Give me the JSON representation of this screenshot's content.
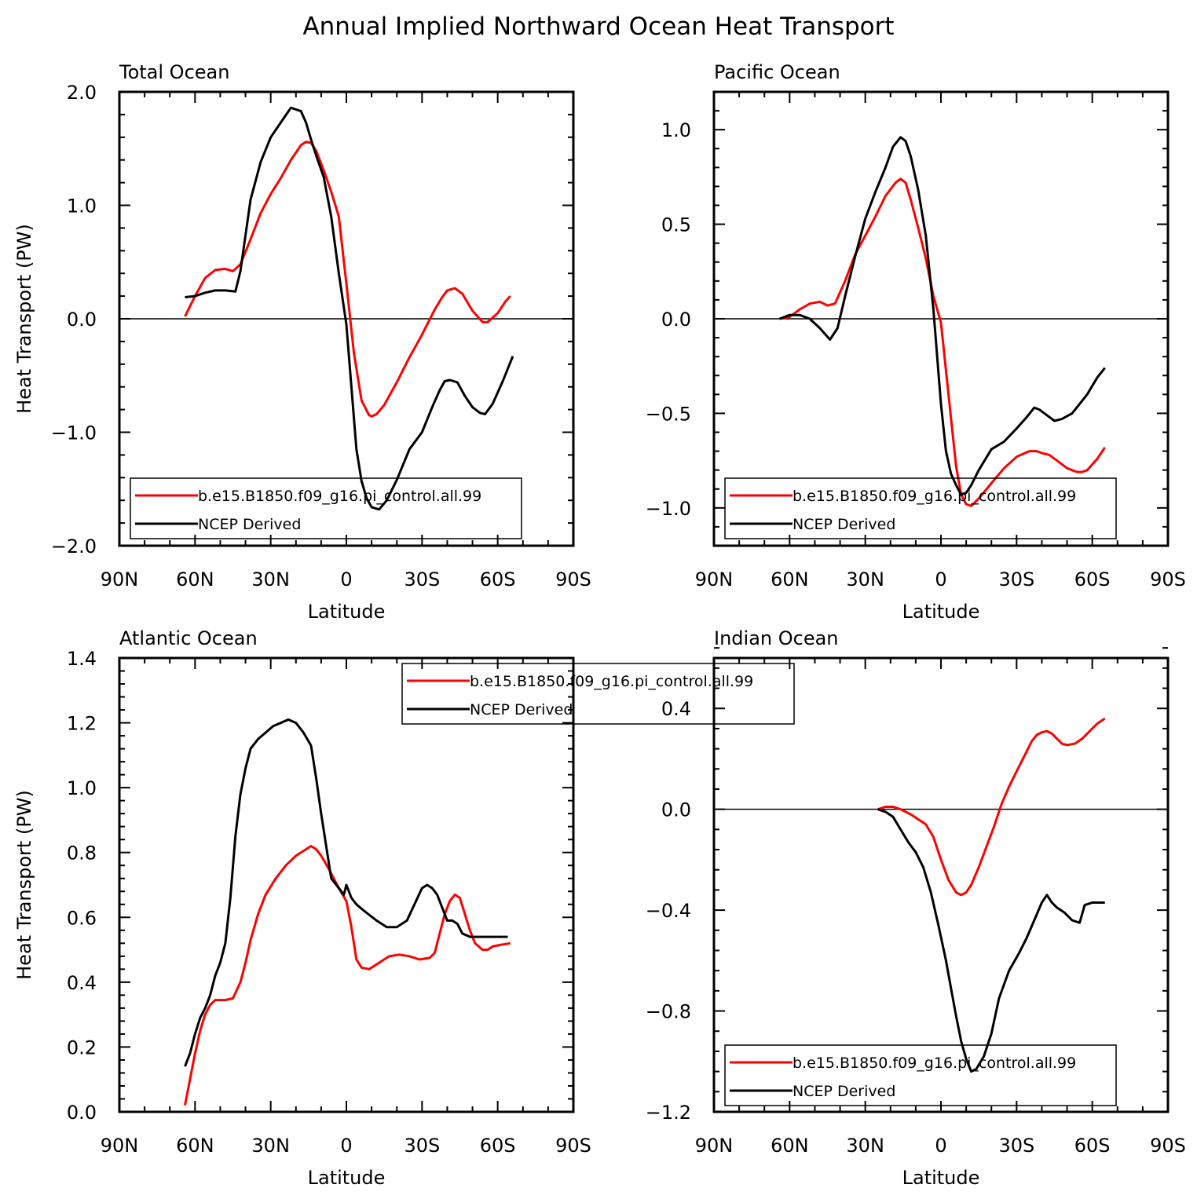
{
  "figure_title": "Annual Implied Northward Ocean Heat Transport",
  "colors": {
    "model": "#ff0000",
    "obs": "#000000",
    "axis": "#000000"
  },
  "chart_data": [
    {
      "type": "line",
      "panel_title": "Total Ocean",
      "xlabel": "Latitude",
      "ylabel": "Heat Transport (PW)",
      "xlim": [
        90,
        -90
      ],
      "ylim": [
        -2.0,
        2.0
      ],
      "xticks": [
        90,
        60,
        30,
        0,
        -30,
        -60,
        -90
      ],
      "xtick_labels": [
        "90N",
        "60N",
        "30N",
        "0",
        "30S",
        "60S",
        "90S"
      ],
      "yticks": [
        -2.0,
        -1.0,
        0.0,
        1.0,
        2.0
      ],
      "ytick_labels": [
        "−2.0",
        "−1.0",
        "0.0",
        "1.0",
        "2.0"
      ],
      "zero_line": true,
      "legend_placement": "lower-left",
      "series": [
        {
          "name": "b.e15.B1850.f09_g16.pi_control.all.99",
          "color": "#ff0000",
          "x": [
            64,
            60,
            56,
            52,
            48,
            45,
            42,
            38,
            34,
            30,
            26,
            22,
            18,
            16,
            14,
            12,
            9,
            6,
            3,
            0,
            -3,
            -6,
            -9,
            -10,
            -12,
            -15,
            -20,
            -25,
            -30,
            -35,
            -38,
            -40,
            -43,
            -46,
            -50,
            -54,
            -56,
            -60,
            -63,
            -65
          ],
          "y": [
            0.02,
            0.2,
            0.36,
            0.43,
            0.44,
            0.42,
            0.48,
            0.7,
            0.93,
            1.1,
            1.24,
            1.4,
            1.53,
            1.56,
            1.55,
            1.48,
            1.31,
            1.12,
            0.9,
            0.31,
            -0.3,
            -0.72,
            -0.85,
            -0.86,
            -0.84,
            -0.76,
            -0.56,
            -0.34,
            -0.14,
            0.08,
            0.19,
            0.25,
            0.27,
            0.22,
            0.07,
            -0.03,
            -0.03,
            0.05,
            0.15,
            0.2
          ]
        },
        {
          "name": "NCEP Derived",
          "color": "#000000",
          "x": [
            64,
            60,
            56,
            52,
            48,
            44,
            42,
            38,
            34,
            30,
            26,
            22,
            18,
            16,
            14,
            12,
            9,
            6,
            3,
            0,
            -2,
            -4,
            -6,
            -8,
            -10,
            -13,
            -16,
            -20,
            -25,
            -30,
            -34,
            -37,
            -39,
            -41,
            -44,
            -47,
            -50,
            -53,
            -55,
            -58,
            -62,
            -66
          ],
          "y": [
            0.19,
            0.2,
            0.23,
            0.25,
            0.25,
            0.24,
            0.42,
            1.05,
            1.38,
            1.6,
            1.73,
            1.86,
            1.83,
            1.73,
            1.58,
            1.44,
            1.25,
            0.9,
            0.4,
            -0.05,
            -0.6,
            -1.15,
            -1.43,
            -1.58,
            -1.66,
            -1.68,
            -1.6,
            -1.42,
            -1.15,
            -1.0,
            -0.78,
            -0.63,
            -0.55,
            -0.54,
            -0.56,
            -0.68,
            -0.78,
            -0.83,
            -0.84,
            -0.75,
            -0.55,
            -0.33
          ]
        }
      ]
    },
    {
      "type": "line",
      "panel_title": "Pacific Ocean",
      "xlabel": "Latitude",
      "ylabel": "",
      "xlim": [
        90,
        -90
      ],
      "ylim": [
        -1.2,
        1.2
      ],
      "xticks": [
        90,
        60,
        30,
        0,
        -30,
        -60,
        -90
      ],
      "xtick_labels": [
        "90N",
        "60N",
        "30N",
        "0",
        "30S",
        "60S",
        "90S"
      ],
      "yticks": [
        -1.0,
        -0.5,
        0.0,
        0.5,
        1.0
      ],
      "ytick_labels": [
        "−1.0",
        "−0.5",
        "0.0",
        "0.5",
        "1.0"
      ],
      "zero_line": true,
      "legend_placement": "lower-left",
      "series": [
        {
          "name": "b.e15.B1850.f09_g16.pi_control.all.99",
          "color": "#ff0000",
          "x": [
            64,
            60,
            56,
            52,
            48,
            45,
            42,
            38,
            34,
            30,
            26,
            22,
            18,
            16,
            14,
            12,
            9,
            6,
            3,
            0,
            -3,
            -6,
            -8,
            -10,
            -12,
            -15,
            -20,
            -25,
            -30,
            -35,
            -38,
            -40,
            -43,
            -46,
            -50,
            -54,
            -56,
            -58,
            -62,
            -65
          ],
          "y": [
            0.0,
            0.01,
            0.05,
            0.08,
            0.09,
            0.07,
            0.08,
            0.2,
            0.34,
            0.44,
            0.54,
            0.65,
            0.72,
            0.74,
            0.72,
            0.63,
            0.48,
            0.32,
            0.12,
            -0.02,
            -0.4,
            -0.78,
            -0.93,
            -0.98,
            -0.99,
            -0.95,
            -0.87,
            -0.79,
            -0.73,
            -0.7,
            -0.7,
            -0.71,
            -0.72,
            -0.75,
            -0.79,
            -0.81,
            -0.81,
            -0.8,
            -0.74,
            -0.68
          ]
        },
        {
          "name": "NCEP Derived",
          "color": "#000000",
          "x": [
            64,
            60,
            56,
            52,
            48,
            44,
            41,
            38,
            34,
            30,
            26,
            22,
            19,
            16,
            14,
            12,
            9,
            6,
            3,
            0,
            -2,
            -4,
            -6,
            -8,
            -10,
            -12,
            -15,
            -20,
            -25,
            -30,
            -34,
            -37,
            -39,
            -41,
            -43,
            -45,
            -48,
            -52,
            -55,
            -58,
            -62,
            -65
          ],
          "y": [
            0.0,
            0.02,
            0.02,
            0.0,
            -0.05,
            -0.11,
            -0.05,
            0.12,
            0.33,
            0.53,
            0.67,
            0.8,
            0.91,
            0.96,
            0.94,
            0.86,
            0.68,
            0.44,
            0.05,
            -0.45,
            -0.7,
            -0.82,
            -0.88,
            -0.93,
            -0.92,
            -0.88,
            -0.8,
            -0.69,
            -0.65,
            -0.58,
            -0.52,
            -0.47,
            -0.48,
            -0.5,
            -0.52,
            -0.54,
            -0.53,
            -0.5,
            -0.45,
            -0.4,
            -0.31,
            -0.26
          ]
        }
      ]
    },
    {
      "type": "line",
      "panel_title": "Atlantic Ocean",
      "xlabel": "Latitude",
      "ylabel": "Heat Transport (PW)",
      "xlim": [
        90,
        -90
      ],
      "ylim": [
        0.0,
        1.4
      ],
      "xticks": [
        90,
        60,
        30,
        0,
        -30,
        -60,
        -90
      ],
      "xtick_labels": [
        "90N",
        "60N",
        "30N",
        "0",
        "30S",
        "60S",
        "90S"
      ],
      "yticks": [
        0.0,
        0.2,
        0.4,
        0.6,
        0.8,
        1.0,
        1.2,
        1.4
      ],
      "ytick_labels": [
        "0.0",
        "0.2",
        "0.4",
        "0.6",
        "0.8",
        "1.0",
        "1.2",
        "1.4"
      ],
      "zero_line": false,
      "legend_placement": "top-center",
      "series": [
        {
          "name": "b.e15.B1850.f09_g16.pi_control.all.99",
          "color": "#ff0000",
          "x": [
            64,
            62,
            60,
            58,
            56,
            54,
            52,
            50,
            48,
            45,
            42,
            40,
            38,
            35,
            32,
            28,
            24,
            20,
            16,
            14,
            12,
            10,
            7,
            5,
            3,
            0,
            -2,
            -4,
            -6,
            -9,
            -13,
            -17,
            -21,
            -25,
            -29,
            -33,
            -35,
            -37,
            -39,
            -41,
            -43,
            -45,
            -47,
            -49,
            -51,
            -54,
            -56,
            -58,
            -61,
            -65
          ],
          "y": [
            0.02,
            0.1,
            0.18,
            0.25,
            0.3,
            0.33,
            0.345,
            0.345,
            0.345,
            0.35,
            0.4,
            0.46,
            0.53,
            0.61,
            0.67,
            0.72,
            0.76,
            0.79,
            0.81,
            0.82,
            0.81,
            0.79,
            0.75,
            0.72,
            0.69,
            0.65,
            0.57,
            0.47,
            0.445,
            0.44,
            0.46,
            0.48,
            0.485,
            0.48,
            0.47,
            0.475,
            0.49,
            0.55,
            0.61,
            0.65,
            0.67,
            0.66,
            0.61,
            0.56,
            0.52,
            0.5,
            0.5,
            0.51,
            0.515,
            0.52
          ]
        },
        {
          "name": "NCEP Derived",
          "color": "#000000",
          "x": [
            64,
            62,
            60,
            58,
            56,
            54,
            52,
            50,
            48,
            46,
            44,
            42,
            40,
            38,
            35,
            32,
            29,
            26,
            23,
            20,
            17,
            14,
            12,
            10,
            8,
            6,
            3,
            1,
            0,
            -2,
            -4,
            -7,
            -12,
            -16,
            -20,
            -24,
            -27,
            -30,
            -32,
            -34,
            -36,
            -38,
            -40,
            -42,
            -44,
            -46,
            -49,
            -52,
            -55,
            -58,
            -61,
            -64
          ],
          "y": [
            0.14,
            0.18,
            0.24,
            0.29,
            0.32,
            0.36,
            0.42,
            0.46,
            0.52,
            0.66,
            0.85,
            0.98,
            1.06,
            1.12,
            1.15,
            1.17,
            1.19,
            1.2,
            1.21,
            1.2,
            1.17,
            1.13,
            1.03,
            0.92,
            0.82,
            0.72,
            0.69,
            0.67,
            0.7,
            0.66,
            0.64,
            0.62,
            0.59,
            0.57,
            0.57,
            0.59,
            0.64,
            0.69,
            0.7,
            0.69,
            0.67,
            0.63,
            0.59,
            0.59,
            0.58,
            0.55,
            0.54,
            0.54,
            0.54,
            0.54,
            0.54,
            0.54
          ]
        }
      ]
    },
    {
      "type": "line",
      "panel_title": "Indian Ocean",
      "xlabel": "Latitude",
      "ylabel": "",
      "xlim": [
        90,
        -90
      ],
      "ylim": [
        -1.2,
        0.6
      ],
      "xticks": [
        90,
        60,
        30,
        0,
        -30,
        -60,
        -90
      ],
      "xtick_labels": [
        "90N",
        "60N",
        "30N",
        "0",
        "30S",
        "60S",
        "90S"
      ],
      "yticks": [
        -1.2,
        -0.8,
        -0.4,
        0.0,
        0.4
      ],
      "ytick_labels": [
        "−1.2",
        "−0.8",
        "−0.4",
        "0.0",
        "0.4"
      ],
      "zero_line": true,
      "legend_placement": "lower-left",
      "series": [
        {
          "name": "b.e15.B1850.f09_g16.pi_control.all.99",
          "color": "#ff0000",
          "x": [
            25,
            22,
            19,
            16,
            12,
            9,
            6,
            3,
            0,
            -3,
            -6,
            -8,
            -10,
            -12,
            -15,
            -18,
            -21,
            -24,
            -27,
            -30,
            -33,
            -36,
            -38,
            -40,
            -42,
            -44,
            -46,
            -48,
            -50,
            -53,
            -56,
            -59,
            -62,
            -65
          ],
          "y": [
            0.0,
            0.01,
            0.01,
            0.0,
            -0.02,
            -0.04,
            -0.06,
            -0.11,
            -0.2,
            -0.28,
            -0.33,
            -0.34,
            -0.33,
            -0.3,
            -0.23,
            -0.15,
            -0.07,
            0.02,
            0.09,
            0.15,
            0.21,
            0.27,
            0.295,
            0.305,
            0.31,
            0.3,
            0.28,
            0.26,
            0.255,
            0.26,
            0.28,
            0.31,
            0.34,
            0.36
          ]
        },
        {
          "name": "NCEP Derived",
          "color": "#000000",
          "x": [
            25,
            22,
            19,
            16,
            13,
            10,
            7,
            4,
            1,
            -2,
            -4,
            -6,
            -8,
            -10,
            -12,
            -14,
            -17,
            -20,
            -23,
            -27,
            -31,
            -34,
            -37,
            -40,
            -42,
            -44,
            -46,
            -49,
            -52,
            -55,
            -57,
            -60,
            -63,
            -65
          ],
          "y": [
            0.0,
            -0.01,
            -0.03,
            -0.08,
            -0.13,
            -0.17,
            -0.23,
            -0.33,
            -0.46,
            -0.6,
            -0.71,
            -0.82,
            -0.92,
            -0.99,
            -1.04,
            -1.03,
            -0.98,
            -0.89,
            -0.75,
            -0.64,
            -0.57,
            -0.51,
            -0.44,
            -0.37,
            -0.34,
            -0.37,
            -0.39,
            -0.41,
            -0.44,
            -0.45,
            -0.38,
            -0.37,
            -0.37,
            -0.37
          ]
        }
      ]
    }
  ]
}
